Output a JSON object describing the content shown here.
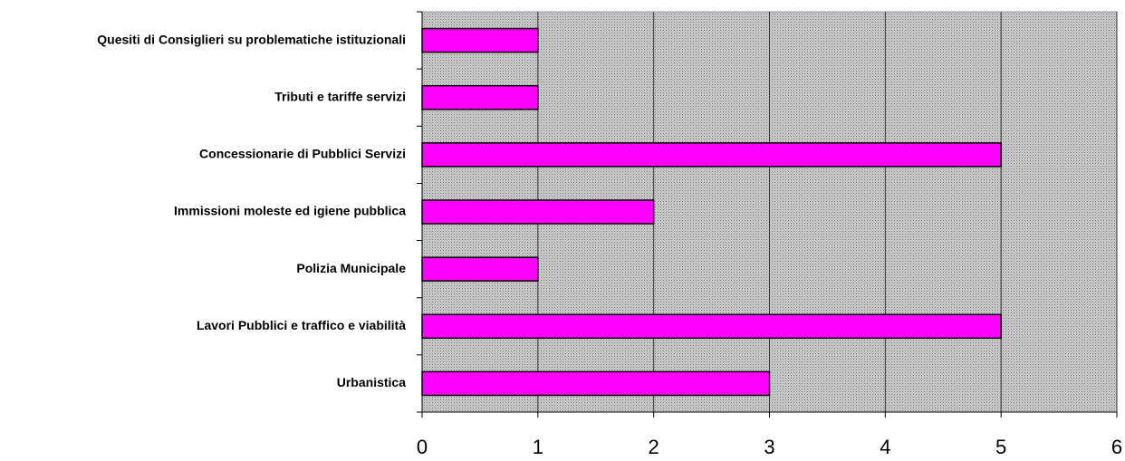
{
  "chart_data": {
    "type": "bar",
    "orientation": "horizontal",
    "categories": [
      "Quesiti di Consiglieri su problematiche istituzionali",
      "Tributi e tariffe servizi",
      "Concessionarie di Pubblici Servizi",
      "Immissioni moleste ed igiene pubblica",
      "Polizia Municipale",
      "Lavori Pubblici e traffico e viabilità",
      "Urbanistica"
    ],
    "values": [
      1,
      1,
      5,
      2,
      1,
      5,
      3
    ],
    "color": "#ff00ff",
    "xlim": [
      0,
      6
    ],
    "xticks": [
      0,
      1,
      2,
      3,
      4,
      5,
      6
    ],
    "grid": true
  }
}
